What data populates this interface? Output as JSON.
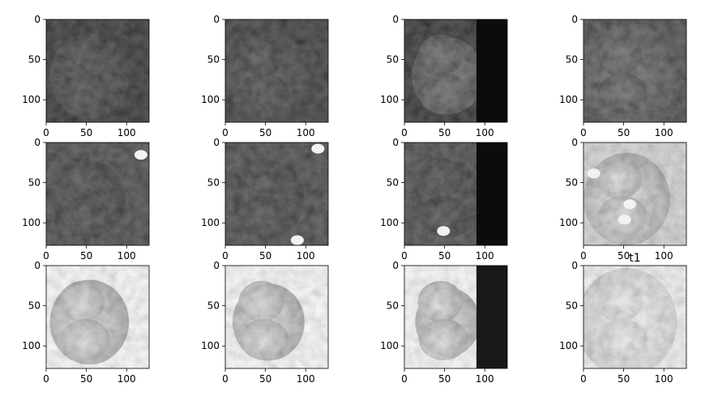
{
  "chart_data": {
    "type": "image-grid",
    "rows": 3,
    "cols": 4,
    "x_ticks": [
      0,
      50,
      100
    ],
    "y_ticks": [
      0,
      50,
      100
    ],
    "image_extent": [
      0,
      128
    ],
    "colormap": "gray",
    "panels": [
      {
        "row": 0,
        "col": 0,
        "title": "",
        "content": "grayscale MRI slice"
      },
      {
        "row": 0,
        "col": 1,
        "title": "",
        "content": "grayscale MRI slice"
      },
      {
        "row": 0,
        "col": 2,
        "title": "",
        "content": "grayscale MRI slice"
      },
      {
        "row": 0,
        "col": 3,
        "title": "",
        "content": "grayscale MRI slice"
      },
      {
        "row": 1,
        "col": 0,
        "title": "",
        "content": "grayscale MRI slice"
      },
      {
        "row": 1,
        "col": 1,
        "title": "",
        "content": "grayscale MRI slice"
      },
      {
        "row": 1,
        "col": 2,
        "title": "",
        "content": "grayscale MRI slice"
      },
      {
        "row": 1,
        "col": 3,
        "title": "",
        "content": "grayscale MRI slice"
      },
      {
        "row": 2,
        "col": 0,
        "title": "",
        "content": "grayscale MRI slice"
      },
      {
        "row": 2,
        "col": 1,
        "title": "",
        "content": "grayscale MRI slice"
      },
      {
        "row": 2,
        "col": 2,
        "title": "",
        "content": "grayscale MRI slice"
      },
      {
        "row": 2,
        "col": 3,
        "title": "t1",
        "content": "grayscale MRI slice"
      }
    ]
  }
}
